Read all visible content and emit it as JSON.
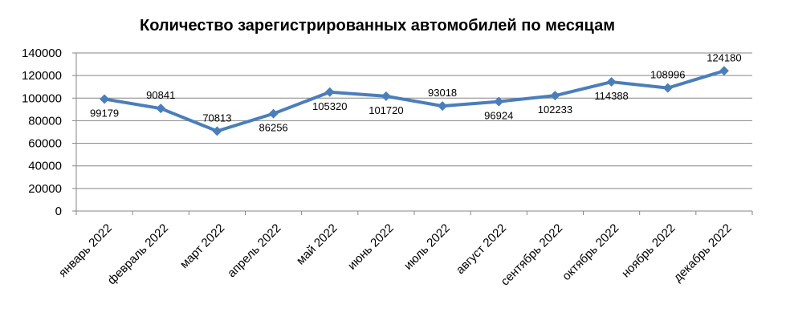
{
  "chart_data": {
    "type": "line",
    "title": "Количество зарегистрированных автомобилей по месяцам",
    "categories": [
      "январь 2022",
      "февраль 2022",
      "март 2022",
      "апрель 2022",
      "май 2022",
      "июнь 2022",
      "июль 2022",
      "август 2022",
      "сентябрь 2022",
      "октябрь 2022",
      "ноябрь 2022",
      "декабрь 2022"
    ],
    "series": [
      {
        "values": [
          99179,
          90841,
          70813,
          86256,
          105320,
          101720,
          93018,
          96924,
          102233,
          114388,
          108996,
          124180
        ],
        "data_labels": [
          "99179",
          "90841",
          "70813",
          "86256",
          "105320",
          "101720",
          "93018",
          "96924",
          "102233",
          "114388",
          "108996",
          "124180"
        ],
        "label_placement": [
          "below",
          "above",
          "above",
          "below",
          "below",
          "below",
          "above",
          "below",
          "below",
          "below",
          "above",
          "above"
        ],
        "color": "#4a7ebb",
        "marker": "diamond"
      }
    ],
    "ylim": [
      0,
      140000
    ],
    "yticks": [
      0,
      20000,
      40000,
      60000,
      80000,
      100000,
      120000,
      140000
    ],
    "ytick_labels": [
      "0",
      "20000",
      "40000",
      "60000",
      "80000",
      "100000",
      "120000",
      "140000"
    ],
    "grid": true,
    "xlabel": "",
    "ylabel": "",
    "legend": "none"
  }
}
